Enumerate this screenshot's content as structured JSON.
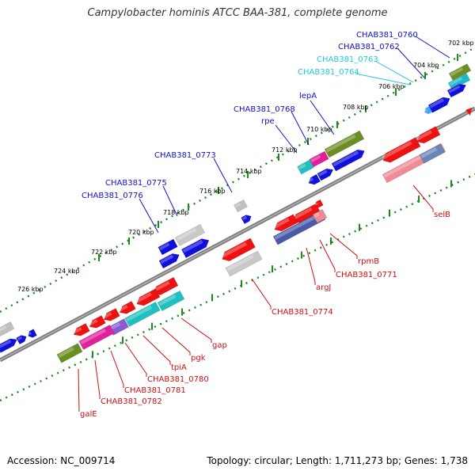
{
  "title": "Campylobacter hominis ATCC BAA-381, complete genome",
  "footer": {
    "accession": "Accession: NC_009714",
    "stats": "Topology: circular; Length: 1,711,273 bp; Genes: 1,738"
  },
  "colors": {
    "backbone": "#808080",
    "ruler": "#1a8a1a",
    "forward_label": "#1010cc",
    "forward_light_label": "#22c8e0",
    "reverse_label": "#cc1111"
  },
  "ticks": [
    {
      "label": "702 kbp"
    },
    {
      "label": "704 kbp"
    },
    {
      "label": "706 kbp"
    },
    {
      "label": "708 kbp"
    },
    {
      "label": "710 kbp"
    },
    {
      "label": "712 kbp"
    },
    {
      "label": "714 kbp"
    },
    {
      "label": "716 kbp"
    },
    {
      "label": "718 kbp"
    },
    {
      "label": "720 kbp"
    },
    {
      "label": "722 kbp"
    },
    {
      "label": "724 kbp"
    },
    {
      "label": "726 kbp"
    }
  ],
  "forward_genes": [
    {
      "label": "CHAB381_0760",
      "tone": "dark"
    },
    {
      "label": "CHAB381_0762",
      "tone": "dark"
    },
    {
      "label": "CHAB381_0763",
      "tone": "light"
    },
    {
      "label": "CHAB381_0764",
      "tone": "light"
    },
    {
      "label": "lepA",
      "tone": "dark"
    },
    {
      "label": "CHAB381_0768",
      "tone": "dark"
    },
    {
      "label": "rpe",
      "tone": "dark"
    },
    {
      "label": "CHAB381_0773",
      "tone": "dark"
    },
    {
      "label": "CHAB381_0775",
      "tone": "dark"
    },
    {
      "label": "CHAB381_0776",
      "tone": "dark"
    }
  ],
  "reverse_genes": [
    {
      "label": "selB"
    },
    {
      "label": "rpmB"
    },
    {
      "label": "CHAB381_0771"
    },
    {
      "label": "argJ"
    },
    {
      "label": "CHAB381_0774"
    },
    {
      "label": "gap"
    },
    {
      "label": "pgk"
    },
    {
      "label": "tpiA"
    },
    {
      "label": "CHAB381_0780"
    },
    {
      "label": "CHAB381_0781"
    },
    {
      "label": "CHAB381_0782"
    },
    {
      "label": "galE"
    }
  ]
}
